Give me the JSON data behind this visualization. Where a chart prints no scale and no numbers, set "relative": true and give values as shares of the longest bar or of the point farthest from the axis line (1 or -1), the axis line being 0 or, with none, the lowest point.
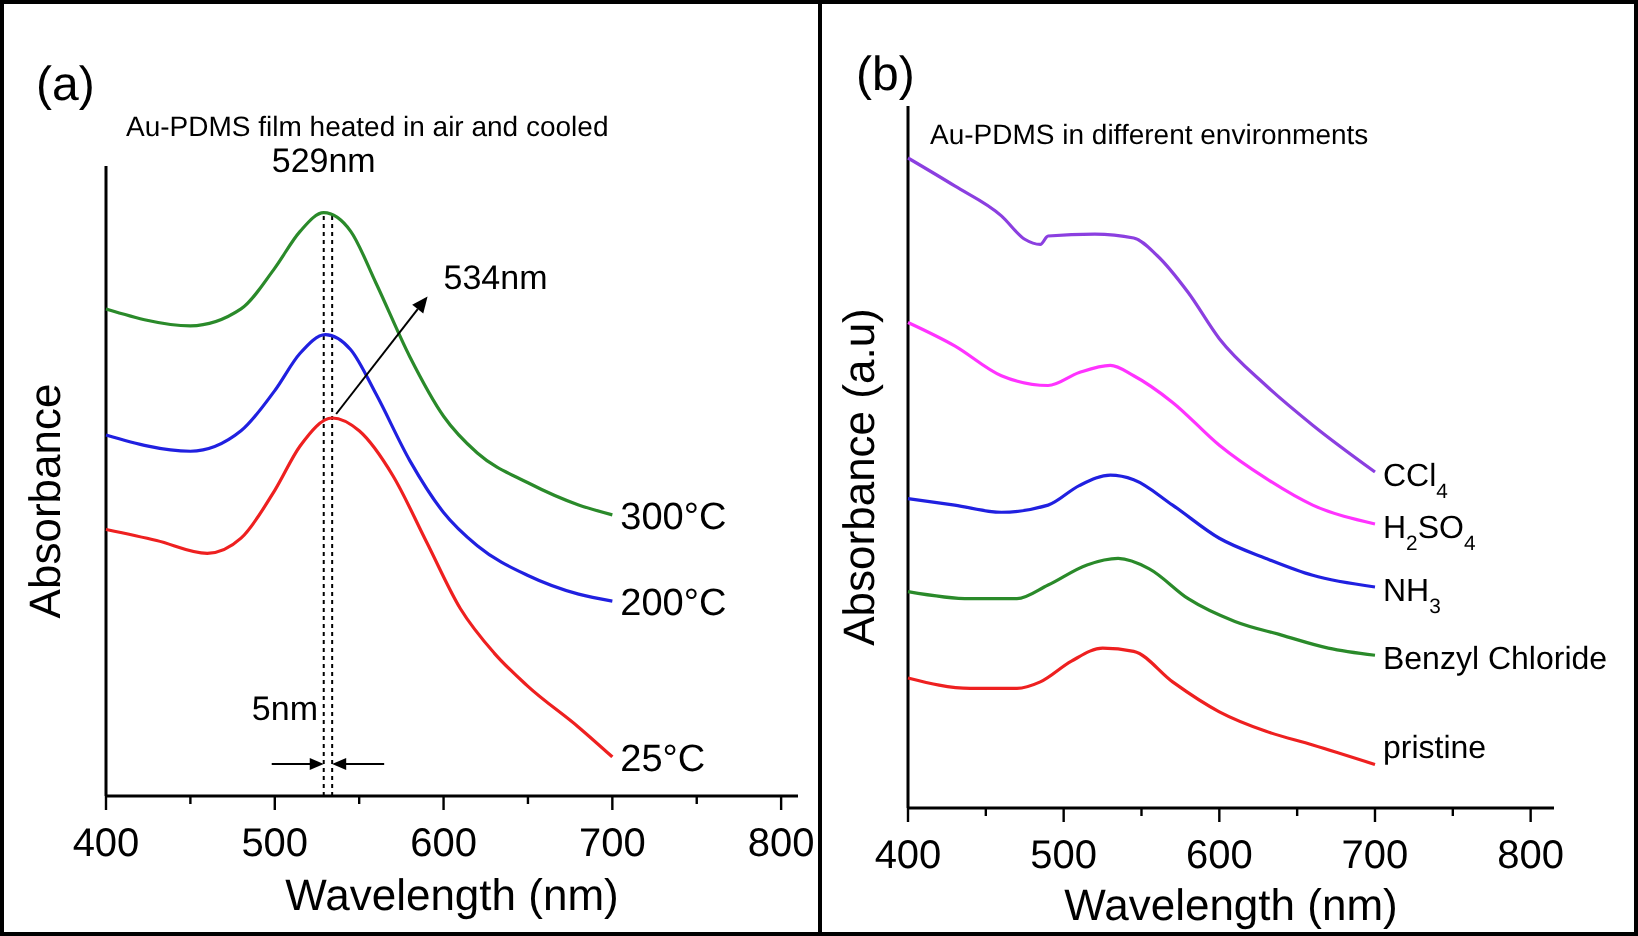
{
  "chart_data": [
    {
      "type": "line",
      "title": "(a)",
      "subtitle": "Au-PDMS film heated in air and cooled",
      "xlabel": "Wavelength (nm)",
      "ylabel": "Absorbance",
      "relative": true,
      "xlim": [
        400,
        810
      ],
      "xticks": [
        400,
        {
          "value": 450,
          "label": null
        },
        500,
        {
          "value": 550,
          "label": null
        },
        600,
        {
          "value": 650,
          "label": null
        },
        700,
        {
          "value": 750,
          "label": null
        },
        800
      ],
      "marker": "none",
      "line_style": "solid",
      "grid": false,
      "series": [
        {
          "name": "300°C",
          "color": "#2a8a2a",
          "x": [
            400,
            450,
            480,
            500,
            515,
            529,
            545,
            560,
            580,
            600,
            620,
            650,
            680,
            700
          ],
          "values": [
            0.835,
            0.806,
            0.835,
            0.905,
            0.968,
            1,
            0.968,
            0.879,
            0.753,
            0.651,
            0.588,
            0.537,
            0.499,
            0.482
          ]
        },
        {
          "name": "200°C",
          "color": "#2020e0",
          "x": [
            400,
            450,
            480,
            500,
            515,
            530,
            545,
            560,
            580,
            600,
            620,
            650,
            680,
            700
          ],
          "values": [
            0.619,
            0.591,
            0.626,
            0.695,
            0.759,
            0.791,
            0.765,
            0.689,
            0.575,
            0.486,
            0.429,
            0.378,
            0.346,
            0.334
          ]
        },
        {
          "name": "25°C",
          "color": "#ee2020",
          "x": [
            400,
            430,
            460,
            480,
            500,
            515,
            534,
            550,
            570,
            590,
            610,
            630,
            650,
            680,
            700
          ],
          "values": [
            0.457,
            0.438,
            0.416,
            0.442,
            0.524,
            0.6,
            0.648,
            0.626,
            0.549,
            0.435,
            0.321,
            0.245,
            0.188,
            0.118,
            0.067
          ]
        }
      ],
      "ref_lines": [
        {
          "axis": "x",
          "value": 529,
          "line_style": "dotted",
          "color": "#000000"
        },
        {
          "axis": "x",
          "value": 534,
          "line_style": "dotted",
          "color": "#000000"
        }
      ],
      "annotations": [
        "529nm",
        "534nm",
        "5nm"
      ]
    },
    {
      "type": "line",
      "title": "(b)",
      "subtitle": "Au-PDMS in different environments",
      "xlabel": "Wavelength (nm)",
      "ylabel": "Absorbance (a.u)",
      "relative": true,
      "xlim": [
        400,
        815
      ],
      "xticks": [
        400,
        {
          "value": 450,
          "label": null
        },
        500,
        {
          "value": 550,
          "label": null
        },
        600,
        {
          "value": 650,
          "label": null
        },
        700,
        {
          "value": 750,
          "label": null
        },
        800
      ],
      "marker": "none",
      "line_style": "solid",
      "grid": false,
      "series": [
        {
          "name": "CCl$_{4}$",
          "color": "#8b3fe0",
          "x": [
            400,
            430,
            460,
            475,
            485,
            490,
            520,
            545,
            560,
            580,
            600,
            630,
            660,
            700
          ],
          "values": [
            1,
            0.957,
            0.911,
            0.875,
            0.867,
            0.88,
            0.883,
            0.877,
            0.85,
            0.793,
            0.722,
            0.65,
            0.589,
            0.517
          ]
        },
        {
          "name": "H$_{2}$SO$_{4}$",
          "color": "#ff33ff",
          "x": [
            400,
            430,
            460,
            490,
            510,
            530,
            545,
            570,
            600,
            630,
            660,
            700
          ],
          "values": [
            0.747,
            0.711,
            0.665,
            0.65,
            0.67,
            0.681,
            0.665,
            0.624,
            0.558,
            0.507,
            0.466,
            0.437
          ]
        },
        {
          "name": "NH$_{3}$",
          "color": "#2020e0",
          "x": [
            400,
            430,
            460,
            490,
            510,
            530,
            545,
            570,
            600,
            630,
            660,
            700
          ],
          "values": [
            0.476,
            0.466,
            0.455,
            0.466,
            0.496,
            0.512,
            0.505,
            0.466,
            0.415,
            0.384,
            0.358,
            0.34
          ]
        },
        {
          "name": "Benzyl Chloride",
          "color": "#2a8a2a",
          "x": [
            400,
            440,
            470,
            490,
            515,
            535,
            555,
            580,
            610,
            640,
            670,
            700
          ],
          "values": [
            0.333,
            0.322,
            0.322,
            0.343,
            0.374,
            0.384,
            0.368,
            0.322,
            0.287,
            0.266,
            0.246,
            0.235
          ]
        },
        {
          "name": "pristine",
          "color": "#ee2020",
          "x": [
            400,
            440,
            470,
            485,
            505,
            525,
            545,
            570,
            600,
            630,
            660,
            700
          ],
          "values": [
            0.2,
            0.184,
            0.184,
            0.194,
            0.226,
            0.246,
            0.241,
            0.194,
            0.148,
            0.118,
            0.097,
            0.067
          ]
        }
      ]
    }
  ]
}
